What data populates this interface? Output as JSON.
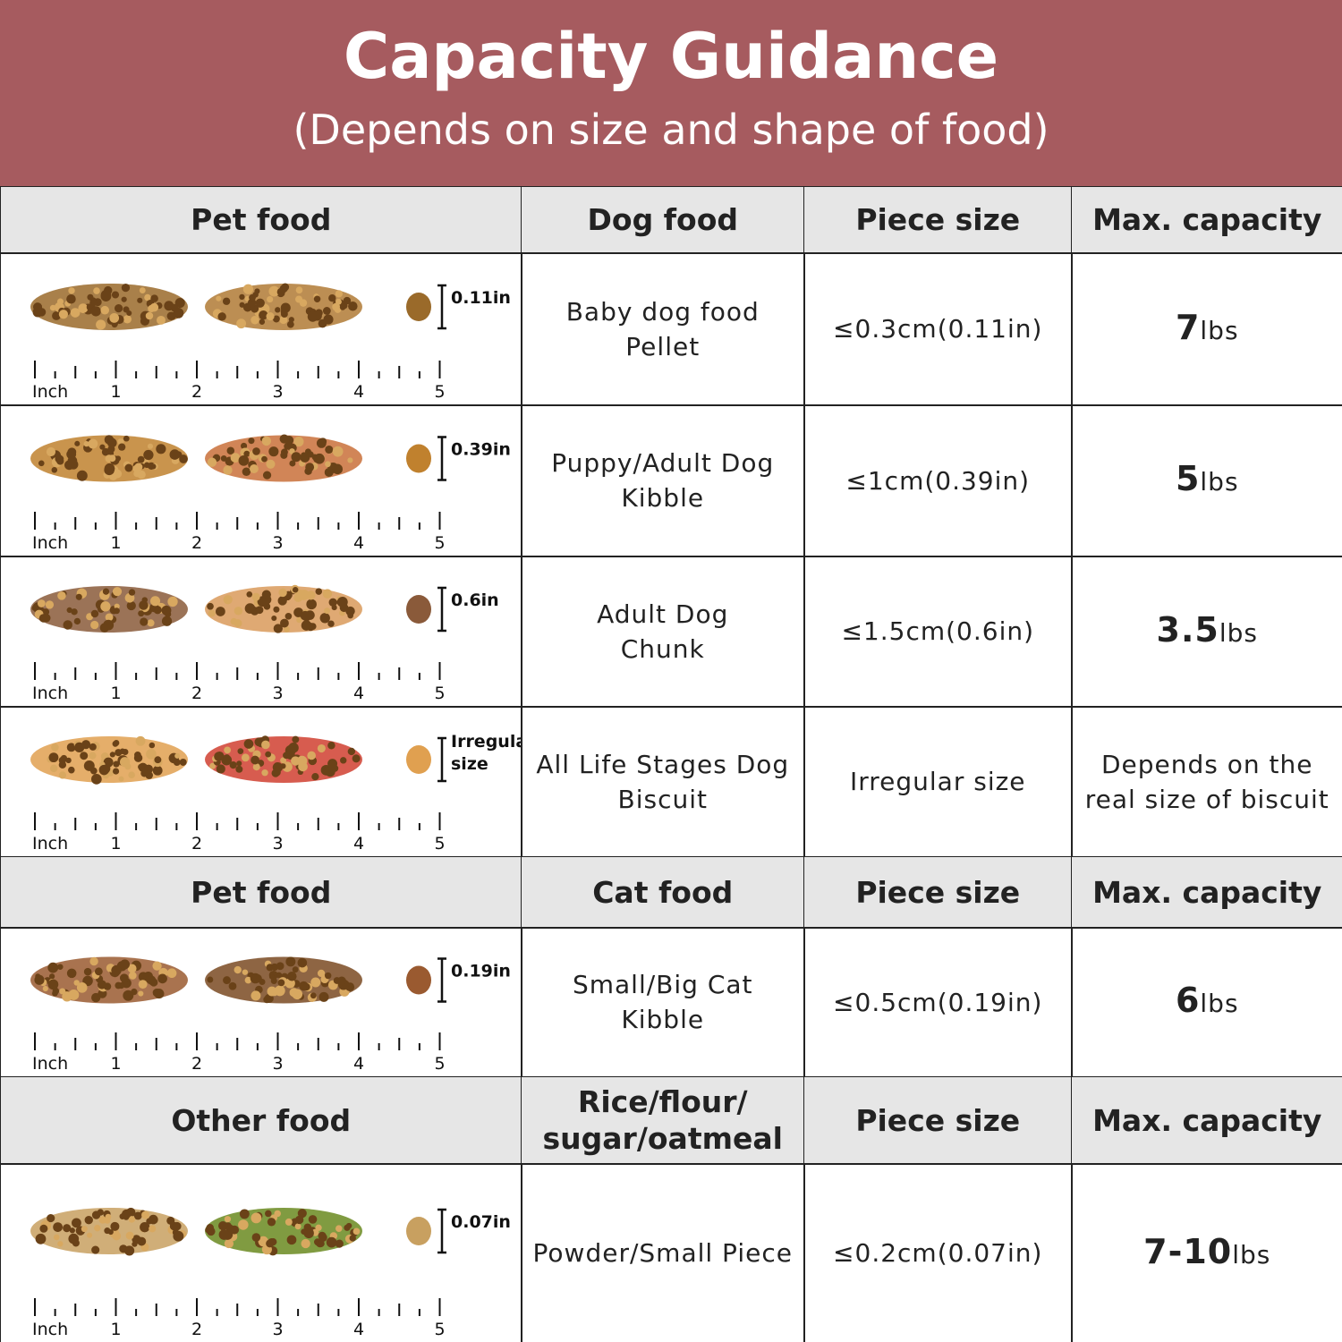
{
  "header": {
    "title": "Capacity Guidance",
    "subtitle": "(Depends on size and shape of food)"
  },
  "ruler": {
    "unit": "Inch",
    "labels": [
      "1",
      "2",
      "3",
      "4",
      "5"
    ]
  },
  "sections": [
    {
      "header": [
        [
          "Pet food"
        ],
        [
          "Dog food"
        ],
        [
          "Piece size"
        ],
        [
          "Max. capacity"
        ]
      ],
      "rows": [
        {
          "size_mark": [
            "0.11in"
          ],
          "food": [
            "Baby dog food",
            "Pellet"
          ],
          "piece_size": "≤0.3cm(0.11in)",
          "capacity": {
            "amount": "7",
            "unit": "lbs"
          }
        },
        {
          "size_mark": [
            "0.39in"
          ],
          "food": [
            "Puppy/Adult Dog",
            "Kibble"
          ],
          "piece_size": "≤1cm(0.39in)",
          "capacity": {
            "amount": "5",
            "unit": "lbs"
          }
        },
        {
          "size_mark": [
            "0.6in"
          ],
          "food": [
            "Adult Dog",
            "Chunk"
          ],
          "piece_size": "≤1.5cm(0.6in)",
          "capacity": {
            "amount": "3.5",
            "unit": "lbs"
          }
        },
        {
          "size_mark": [
            "Irregular",
            "size"
          ],
          "food": [
            "All Life Stages Dog",
            "Biscuit"
          ],
          "piece_size": "Irregular size",
          "capacity": {
            "text": [
              "Depends on the",
              "real size of biscuit"
            ]
          }
        }
      ]
    },
    {
      "header": [
        [
          "Pet food"
        ],
        [
          "Cat food"
        ],
        [
          "Piece size"
        ],
        [
          "Max. capacity"
        ]
      ],
      "rows": [
        {
          "size_mark": [
            "0.19in"
          ],
          "food": [
            "Small/Big Cat",
            "Kibble"
          ],
          "piece_size": "≤0.5cm(0.19in)",
          "capacity": {
            "amount": "6",
            "unit": "lbs"
          }
        }
      ]
    },
    {
      "header": [
        [
          "Other food"
        ],
        [
          "Rice/flour/",
          "sugar/oatmeal"
        ],
        [
          "Piece size"
        ],
        [
          "Max. capacity"
        ]
      ],
      "rows": [
        {
          "size_mark": [
            "0.07in"
          ],
          "food": [
            "Powder/Small Piece"
          ],
          "piece_size": "≤0.2cm(0.07in)",
          "capacity": {
            "amount": "7-10",
            "unit": "lbs"
          }
        }
      ]
    }
  ]
}
